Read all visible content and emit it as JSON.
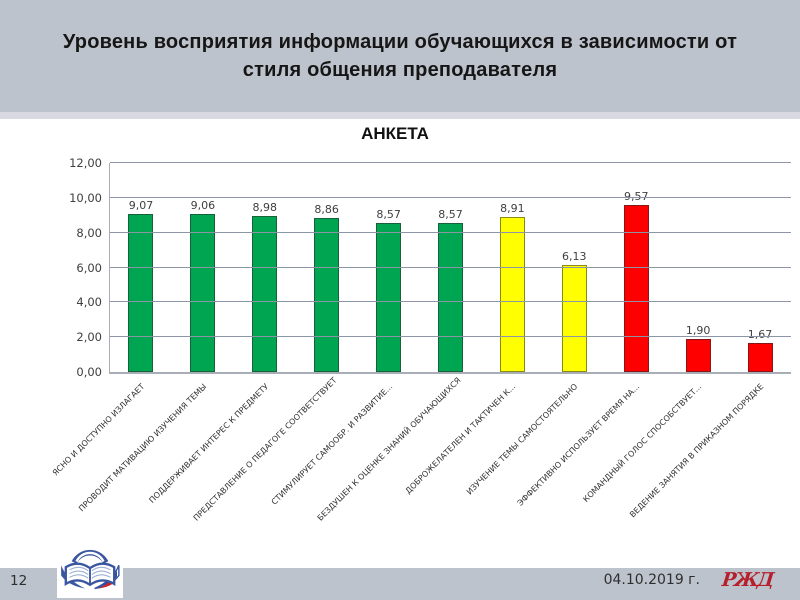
{
  "slide": {
    "title": "Уровень восприятия информации обучающихся в зависимости от стиля общения преподавателя",
    "slide_number": "12",
    "date": "04.10.2019 г.",
    "rzd_logo_text": "РЖД"
  },
  "chart_data": {
    "type": "bar",
    "title": "АНКЕТА",
    "categories": [
      "ЯСНО И ДОСТУПНО ИЗЛАГАЕТ",
      "ПРОВОДИТ МАТИВАЦИЮ ИЗУЧЕНИЯ ТЕМЫ",
      "ПОДДЕРЖИВАЕТ ИНТЕРЕС К ПРЕДМЕТУ",
      "ПРЕДСТАВЛЕНИЕ О ПЕДАГОГЕ СООТВЕТСТВУЕТ",
      "СТИМУЛИРУЕТ САМООБР. И РАЗВИТИЕ...",
      "БЕЗДУШЕН К ОЦЕНКЕ ЗНАНИЙ ОБУЧАЮЩИХСЯ",
      "ДОБРОЖЕЛАТЕЛЕН И ТАКТИЧЕН К...",
      "ИЗУЧЕНИЕ ТЕМЫ САМОСТОЯТЕЛЬНО",
      "ЭФФЕКТИВНО ИСПОЛЬЗУЕТ ВРЕМЯ НА...",
      "КОМАНДНЫЙ ГОЛОС СПОСОБСТВУЕТ...",
      "ВЕДЕНИЕ ЗАНЯТИЯ В ПРИКАЗНОМ ПОРЯДКЕ"
    ],
    "values": [
      9.07,
      9.06,
      8.98,
      8.86,
      8.57,
      8.57,
      8.91,
      6.13,
      9.57,
      1.9,
      1.67
    ],
    "value_labels": [
      "9,07",
      "9,06",
      "8,98",
      "8,86",
      "8,57",
      "8,57",
      "8,91",
      "6,13",
      "9,57",
      "1,90",
      "1,67"
    ],
    "bar_colors": [
      "#00a551",
      "#00a551",
      "#00a551",
      "#00a551",
      "#00a551",
      "#00a551",
      "#ffff00",
      "#ffff00",
      "#fe0000",
      "#fe0000",
      "#fe0000"
    ],
    "xlabel": "",
    "ylabel": "",
    "ylim": [
      0,
      12
    ],
    "ytick_step": 2,
    "ytick_labels": [
      "0,00",
      "2,00",
      "4,00",
      "6,00",
      "8,00",
      "10,00",
      "12,00"
    ],
    "grid": true,
    "legend": "none"
  },
  "colors": {
    "header_bg": "#bdc3cc",
    "green": "#00a551",
    "yellow": "#ffff00",
    "red": "#fe0000",
    "gridline": "#8b95a4",
    "rzd_red": "#b5202c"
  }
}
